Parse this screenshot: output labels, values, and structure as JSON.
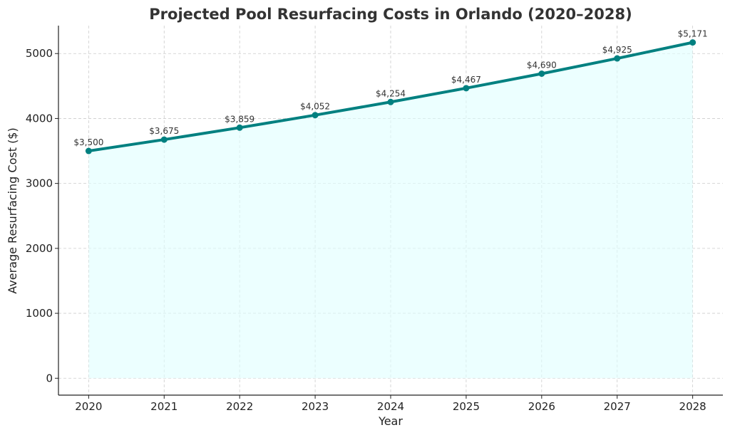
{
  "chart_data": {
    "type": "area",
    "title": "Projected Pool Resurfacing Costs in Orlando (2020–2028)",
    "xlabel": "Year",
    "ylabel": "Average Resurfacing Cost ($)",
    "categories": [
      "2020",
      "2021",
      "2022",
      "2023",
      "2024",
      "2025",
      "2026",
      "2027",
      "2028"
    ],
    "series": [
      {
        "name": "Average Resurfacing Cost",
        "values": [
          3500,
          3675,
          3859,
          4052,
          4254,
          4467,
          4690,
          4925,
          5171
        ],
        "labels": [
          "$3,500",
          "$3,675",
          "$3,859",
          "$4,052",
          "$4,254",
          "$4,467",
          "$4,690",
          "$4,925",
          "$5,171"
        ]
      }
    ],
    "yticks": [
      0,
      1000,
      2000,
      3000,
      4000,
      5000
    ],
    "ylim": [
      -260,
      5430
    ],
    "xlim": [
      2019.6,
      2028.4
    ],
    "grid": true,
    "line_color": "#008080",
    "fill_color": "#e0ffff"
  }
}
